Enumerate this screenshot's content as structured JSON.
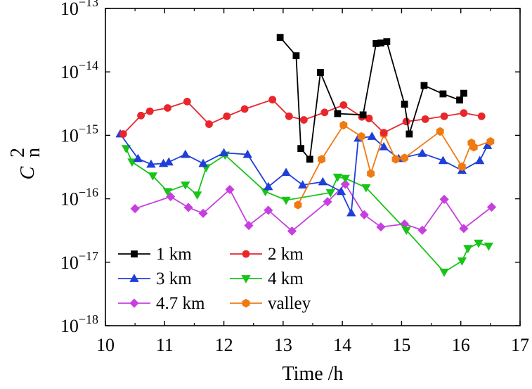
{
  "chart_data": {
    "type": "line",
    "title": "",
    "xlabel": "Time /h",
    "ylabel": {
      "main": "C",
      "superscript": "2",
      "subscript": "n"
    },
    "yscale": "log",
    "xlim": [
      10,
      17
    ],
    "ylim_exp": [
      -18,
      -13
    ],
    "xticks": [
      "10",
      "11",
      "12",
      "13",
      "14",
      "15",
      "16",
      "17"
    ],
    "yticks": [
      {
        "base": "10",
        "exp": "−18"
      },
      {
        "base": "10",
        "exp": "−17"
      },
      {
        "base": "10",
        "exp": "−16"
      },
      {
        "base": "10",
        "exp": "−15"
      },
      {
        "base": "10",
        "exp": "−14"
      },
      {
        "base": "10",
        "exp": "−13"
      }
    ],
    "legend_position": "bottom-left",
    "series": [
      {
        "name": "1 km",
        "color": "#000000",
        "marker": "square",
        "points": [
          [
            12.95,
            3.5e-14
          ],
          [
            13.22,
            1.8e-14
          ],
          [
            13.3,
            6.2e-16
          ],
          [
            13.45,
            4.2e-16
          ],
          [
            13.63,
            9.8e-15
          ],
          [
            13.92,
            2.2e-15
          ],
          [
            14.35,
            2.1e-15
          ],
          [
            14.57,
            2.8e-14
          ],
          [
            14.65,
            2.85e-14
          ],
          [
            14.75,
            3e-14
          ],
          [
            15.05,
            3.1e-15
          ],
          [
            15.13,
            1.05e-15
          ],
          [
            15.38,
            6.1e-15
          ],
          [
            15.7,
            4.5e-15
          ],
          [
            15.98,
            3.6e-15
          ],
          [
            16.05,
            4.6e-15
          ]
        ]
      },
      {
        "name": "2 km",
        "color": "#e8262b",
        "marker": "circle",
        "points": [
          [
            10.3,
            1.05e-15
          ],
          [
            10.6,
            2.05e-15
          ],
          [
            10.75,
            2.4e-15
          ],
          [
            11.05,
            2.7e-15
          ],
          [
            11.38,
            3.4e-15
          ],
          [
            11.75,
            1.5e-15
          ],
          [
            12.05,
            2e-15
          ],
          [
            12.35,
            2.6e-15
          ],
          [
            12.82,
            3.65e-15
          ],
          [
            13.1,
            2e-15
          ],
          [
            13.35,
            1.75e-15
          ],
          [
            13.7,
            2.3e-15
          ],
          [
            14.02,
            3e-15
          ],
          [
            14.33,
            1.95e-15
          ],
          [
            14.45,
            1.85e-15
          ],
          [
            14.7,
            1.1e-15
          ],
          [
            15.08,
            1.65e-15
          ],
          [
            15.4,
            1.8e-15
          ],
          [
            15.72,
            2e-15
          ],
          [
            16.05,
            2.25e-15
          ],
          [
            16.35,
            2e-15
          ]
        ]
      },
      {
        "name": "3 km",
        "color": "#1f3fd8",
        "marker": "triangle-up",
        "points": [
          [
            10.25,
            1.05e-15
          ],
          [
            10.55,
            4.3e-16
          ],
          [
            10.77,
            3.5e-16
          ],
          [
            10.98,
            3.6e-16
          ],
          [
            11.07,
            3.8e-16
          ],
          [
            11.35,
            5e-16
          ],
          [
            11.65,
            3.6e-16
          ],
          [
            12.0,
            5.3e-16
          ],
          [
            12.4,
            5e-16
          ],
          [
            12.75,
            1.55e-16
          ],
          [
            13.05,
            2.6e-16
          ],
          [
            13.33,
            1.65e-16
          ],
          [
            13.67,
            1.85e-16
          ],
          [
            13.98,
            1.3e-16
          ],
          [
            14.15,
            6e-17
          ],
          [
            14.27,
            9e-16
          ],
          [
            14.5,
            9.6e-16
          ],
          [
            14.7,
            6.6e-16
          ],
          [
            14.95,
            4.3e-16
          ],
          [
            15.35,
            5.2e-16
          ],
          [
            15.7,
            4e-16
          ],
          [
            16.02,
            2.8e-16
          ],
          [
            16.32,
            4e-16
          ],
          [
            16.45,
            6.9e-16
          ]
        ]
      },
      {
        "name": "4 km",
        "color": "#18c418",
        "marker": "triangle-down",
        "points": [
          [
            10.35,
            6.2e-16
          ],
          [
            10.45,
            3.8e-16
          ],
          [
            10.8,
            2.3e-16
          ],
          [
            11.05,
            1.3e-16
          ],
          [
            11.35,
            1.65e-16
          ],
          [
            11.55,
            1.15e-16
          ],
          [
            11.7,
            3.1e-16
          ],
          [
            12.02,
            4.9e-16
          ],
          [
            12.7,
            1.3e-16
          ],
          [
            13.05,
            9.5e-17
          ],
          [
            13.8,
            1.25e-16
          ],
          [
            13.92,
            2.2e-16
          ],
          [
            14.05,
            2.1e-16
          ],
          [
            14.4,
            1.5e-16
          ],
          [
            15.08,
            3.2e-17
          ],
          [
            15.72,
            7e-18
          ],
          [
            16.02,
            1.05e-17
          ],
          [
            16.12,
            1.65e-17
          ],
          [
            16.3,
            2e-17
          ],
          [
            16.47,
            1.8e-17
          ]
        ]
      },
      {
        "name": "4.7 km",
        "color": "#c73fe0",
        "marker": "diamond",
        "points": [
          [
            10.5,
            7e-17
          ],
          [
            11.1,
            1.08e-16
          ],
          [
            11.4,
            7.3e-17
          ],
          [
            11.65,
            5.9e-17
          ],
          [
            12.1,
            1.4e-16
          ],
          [
            12.42,
            3.8e-17
          ],
          [
            12.75,
            6.6e-17
          ],
          [
            13.15,
            3.1e-17
          ],
          [
            13.75,
            9e-17
          ],
          [
            14.05,
            1.7e-16
          ],
          [
            14.37,
            5.6e-17
          ],
          [
            14.65,
            3.6e-17
          ],
          [
            15.05,
            4e-17
          ],
          [
            15.35,
            3.2e-17
          ],
          [
            15.72,
            9.8e-17
          ],
          [
            16.05,
            3.4e-17
          ],
          [
            16.52,
            7.4e-17
          ]
        ]
      },
      {
        "name": "valley",
        "color": "#f07a12",
        "marker": "hexagon",
        "points": [
          [
            13.25,
            8e-17
          ],
          [
            13.65,
            4.2e-16
          ],
          [
            14.02,
            1.45e-15
          ],
          [
            14.32,
            9.6e-16
          ],
          [
            14.48,
            2.5e-16
          ],
          [
            14.7,
            1.05e-15
          ],
          [
            14.9,
            4.2e-16
          ],
          [
            15.05,
            4.4e-16
          ],
          [
            15.65,
            1.15e-15
          ],
          [
            16.02,
            3.2e-16
          ],
          [
            16.18,
            7.6e-16
          ],
          [
            16.22,
            6.5e-16
          ],
          [
            16.5,
            8e-16
          ]
        ]
      }
    ]
  }
}
